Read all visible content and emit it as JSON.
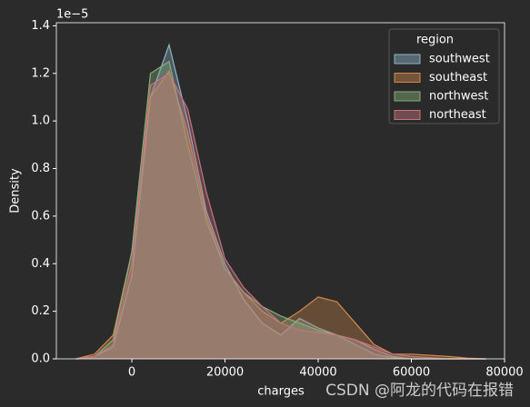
{
  "chart_data": {
    "type": "kde",
    "y_offset_label": "1e−5",
    "x_label": "charges",
    "y_label": "Density",
    "legend_title": "region",
    "legend_position": "upper right",
    "watermark": "CSDN @阿龙的代码在报错",
    "x": [
      -12000,
      -8000,
      -4000,
      0,
      4000,
      8000,
      12000,
      16000,
      20000,
      24000,
      28000,
      32000,
      36000,
      40000,
      44000,
      48000,
      52000,
      56000,
      60000,
      64000,
      68000,
      72000,
      76000
    ],
    "series": [
      {
        "name": "southwest",
        "color": "#8fb3c8",
        "values": [
          0,
          0.01,
          0.05,
          0.35,
          1.1,
          1.32,
          1.0,
          0.62,
          0.4,
          0.25,
          0.15,
          0.1,
          0.17,
          0.13,
          0.1,
          0.08,
          0.04,
          0.01,
          0,
          0,
          0,
          0,
          0
        ]
      },
      {
        "name": "southeast",
        "color": "#d08a4c",
        "values": [
          0,
          0.02,
          0.1,
          0.45,
          1.1,
          1.21,
          0.95,
          0.6,
          0.38,
          0.28,
          0.2,
          0.15,
          0.2,
          0.26,
          0.24,
          0.15,
          0.06,
          0.02,
          0.02,
          0.015,
          0.01,
          0.003,
          0
        ]
      },
      {
        "name": "northwest",
        "color": "#86b07a",
        "values": [
          0,
          0.01,
          0.08,
          0.45,
          1.2,
          1.25,
          0.9,
          0.58,
          0.38,
          0.28,
          0.22,
          0.18,
          0.15,
          0.12,
          0.1,
          0.06,
          0.02,
          0.005,
          0,
          0,
          0,
          0,
          0
        ]
      },
      {
        "name": "northeast",
        "color": "#c6747e",
        "values": [
          0,
          0.01,
          0.06,
          0.4,
          1.15,
          1.2,
          1.05,
          0.7,
          0.42,
          0.3,
          0.22,
          0.15,
          0.12,
          0.11,
          0.1,
          0.08,
          0.05,
          0.02,
          0.01,
          0.005,
          0,
          0,
          0
        ]
      }
    ],
    "xlim": [
      -16200,
      80000
    ],
    "xticks": [
      0,
      20000,
      40000,
      60000,
      80000
    ],
    "ylim": [
      0,
      1.413
    ],
    "yticks": [
      {
        "value": 0,
        "label": "0.0"
      },
      {
        "value": 0.2,
        "label": "0.2"
      },
      {
        "value": 0.4,
        "label": "0.4"
      },
      {
        "value": 0.6,
        "label": "0.6"
      },
      {
        "value": 0.8,
        "label": "0.8"
      },
      {
        "value": 1.0,
        "label": "1.0"
      },
      {
        "value": 1.2,
        "label": "1.2"
      },
      {
        "value": 1.4,
        "label": "1.4"
      }
    ]
  }
}
